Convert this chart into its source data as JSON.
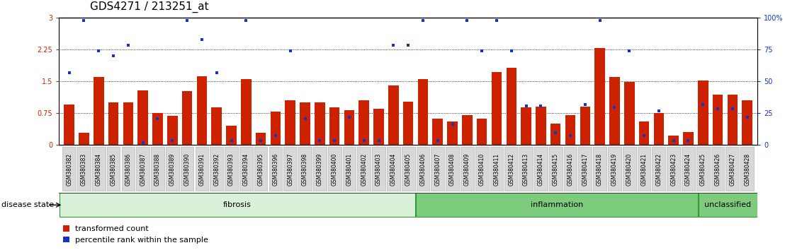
{
  "title": "GDS4271 / 213251_at",
  "samples": [
    "GSM380382",
    "GSM380383",
    "GSM380384",
    "GSM380385",
    "GSM380386",
    "GSM380387",
    "GSM380388",
    "GSM380389",
    "GSM380390",
    "GSM380391",
    "GSM380392",
    "GSM380393",
    "GSM380394",
    "GSM380395",
    "GSM380396",
    "GSM380397",
    "GSM380398",
    "GSM380399",
    "GSM380400",
    "GSM380401",
    "GSM380402",
    "GSM380403",
    "GSM380404",
    "GSM380405",
    "GSM380406",
    "GSM380407",
    "GSM380408",
    "GSM380409",
    "GSM380410",
    "GSM380411",
    "GSM380412",
    "GSM380413",
    "GSM380414",
    "GSM380415",
    "GSM380416",
    "GSM380417",
    "GSM380418",
    "GSM380419",
    "GSM380420",
    "GSM380421",
    "GSM380422",
    "GSM380423",
    "GSM380424",
    "GSM380425",
    "GSM380426",
    "GSM380427",
    "GSM380428"
  ],
  "bar_values": [
    0.95,
    0.28,
    1.6,
    1.0,
    1.0,
    1.28,
    0.75,
    0.68,
    1.27,
    1.62,
    0.88,
    0.45,
    1.55,
    0.28,
    0.78,
    1.05,
    1.0,
    1.0,
    0.88,
    0.82,
    1.05,
    0.85,
    1.4,
    1.02,
    1.55,
    0.62,
    0.55,
    0.7,
    0.62,
    1.72,
    1.82,
    0.88,
    0.9,
    0.5,
    0.7,
    0.9,
    2.28,
    1.6,
    1.48,
    0.55,
    0.75,
    0.22,
    0.3,
    1.52,
    1.18,
    1.18,
    1.05
  ],
  "scatter_values_left_scale": [
    1.7,
    2.93,
    2.22,
    2.1,
    2.35,
    0.05,
    0.62,
    0.1,
    2.93,
    2.48,
    1.7,
    0.1,
    2.93,
    0.1,
    0.22,
    2.22,
    0.62,
    0.1,
    0.1,
    0.65,
    0.1,
    0.1,
    2.35,
    2.35,
    2.93,
    0.1,
    0.48,
    2.93,
    2.22,
    2.93,
    2.22,
    0.92,
    0.92,
    0.28,
    0.22,
    0.95,
    2.93,
    0.88,
    2.22,
    0.22,
    0.8,
    0.1,
    0.1,
    0.95,
    0.86,
    0.86,
    0.65
  ],
  "disease_groups": [
    {
      "label": "fibrosis",
      "start": 0,
      "end": 24,
      "color": "#d9f0d9"
    },
    {
      "label": "inflammation",
      "start": 24,
      "end": 43,
      "color": "#7dcc7d"
    },
    {
      "label": "unclassified",
      "start": 43,
      "end": 47,
      "color": "#7dcc7d"
    }
  ],
  "ylim_left": [
    0,
    3.0
  ],
  "yticks_left": [
    0,
    0.75,
    1.5,
    2.25,
    3.0
  ],
  "ytick_labels_left": [
    "0",
    "0.75",
    "1.5",
    "2.25",
    "3"
  ],
  "yticks_right": [
    0,
    25,
    50,
    75,
    100
  ],
  "ytick_labels_right": [
    "0",
    "25",
    "50",
    "75",
    "100%"
  ],
  "bar_color": "#cc2200",
  "scatter_color": "#1133cc",
  "bg_color": "#ffffff",
  "dotted_lines": [
    0.75,
    1.5,
    2.25
  ],
  "title_fontsize": 11,
  "tick_fontsize": 5.5,
  "label_fontsize": 8,
  "axis_left_color": "#cc2200",
  "axis_right_color": "#1133cc"
}
